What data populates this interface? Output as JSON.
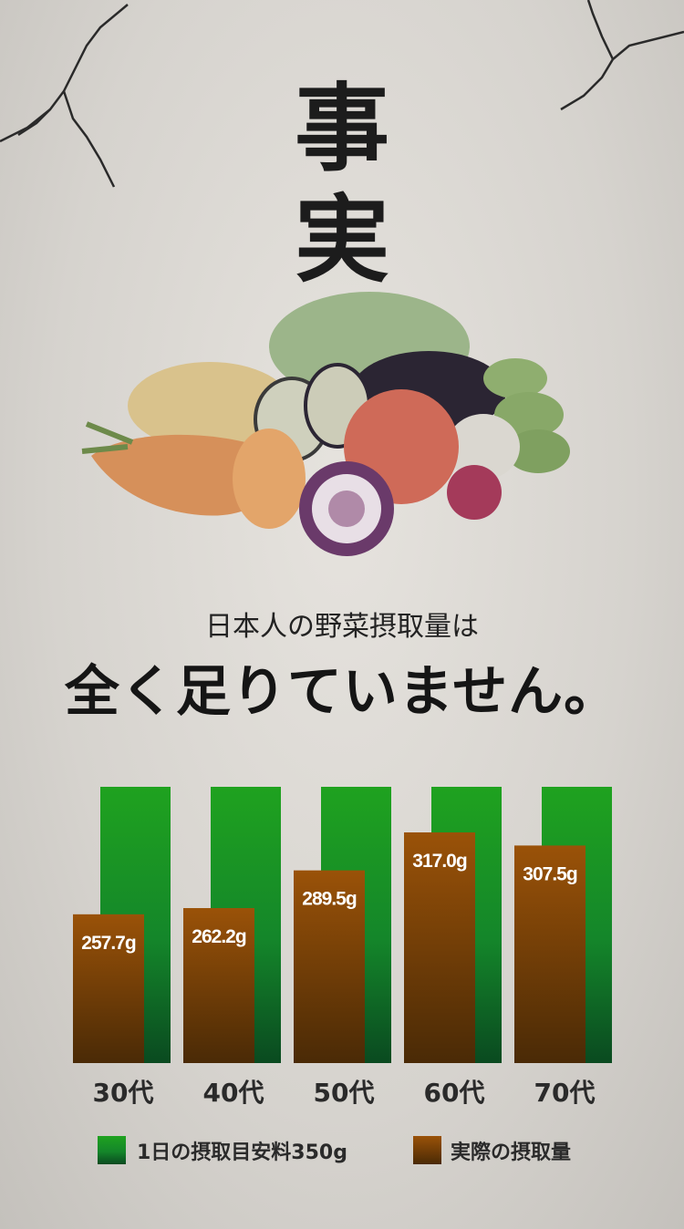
{
  "title": [
    "事",
    "実",
    "。"
  ],
  "subtitle": "日本人の野菜摂取量は",
  "headline": "全く足りていません。",
  "chart_data": {
    "type": "bar",
    "categories": [
      "30代",
      "40代",
      "50代",
      "60代",
      "70代"
    ],
    "series": [
      {
        "name": "1日の摂取目安料350g",
        "values": [
          350,
          350,
          350,
          350,
          350
        ],
        "color": "#1a9a1a"
      },
      {
        "name": "実際の摂取量",
        "values": [
          257.7,
          262.2,
          289.5,
          317.0,
          307.5
        ],
        "labels": [
          "257.7g",
          "262.2g",
          "289.5g",
          "317.0g",
          "307.5g"
        ],
        "color": "#8a4a08"
      }
    ],
    "ylim": [
      150,
      350
    ],
    "grid": false,
    "legend": "bottom"
  }
}
